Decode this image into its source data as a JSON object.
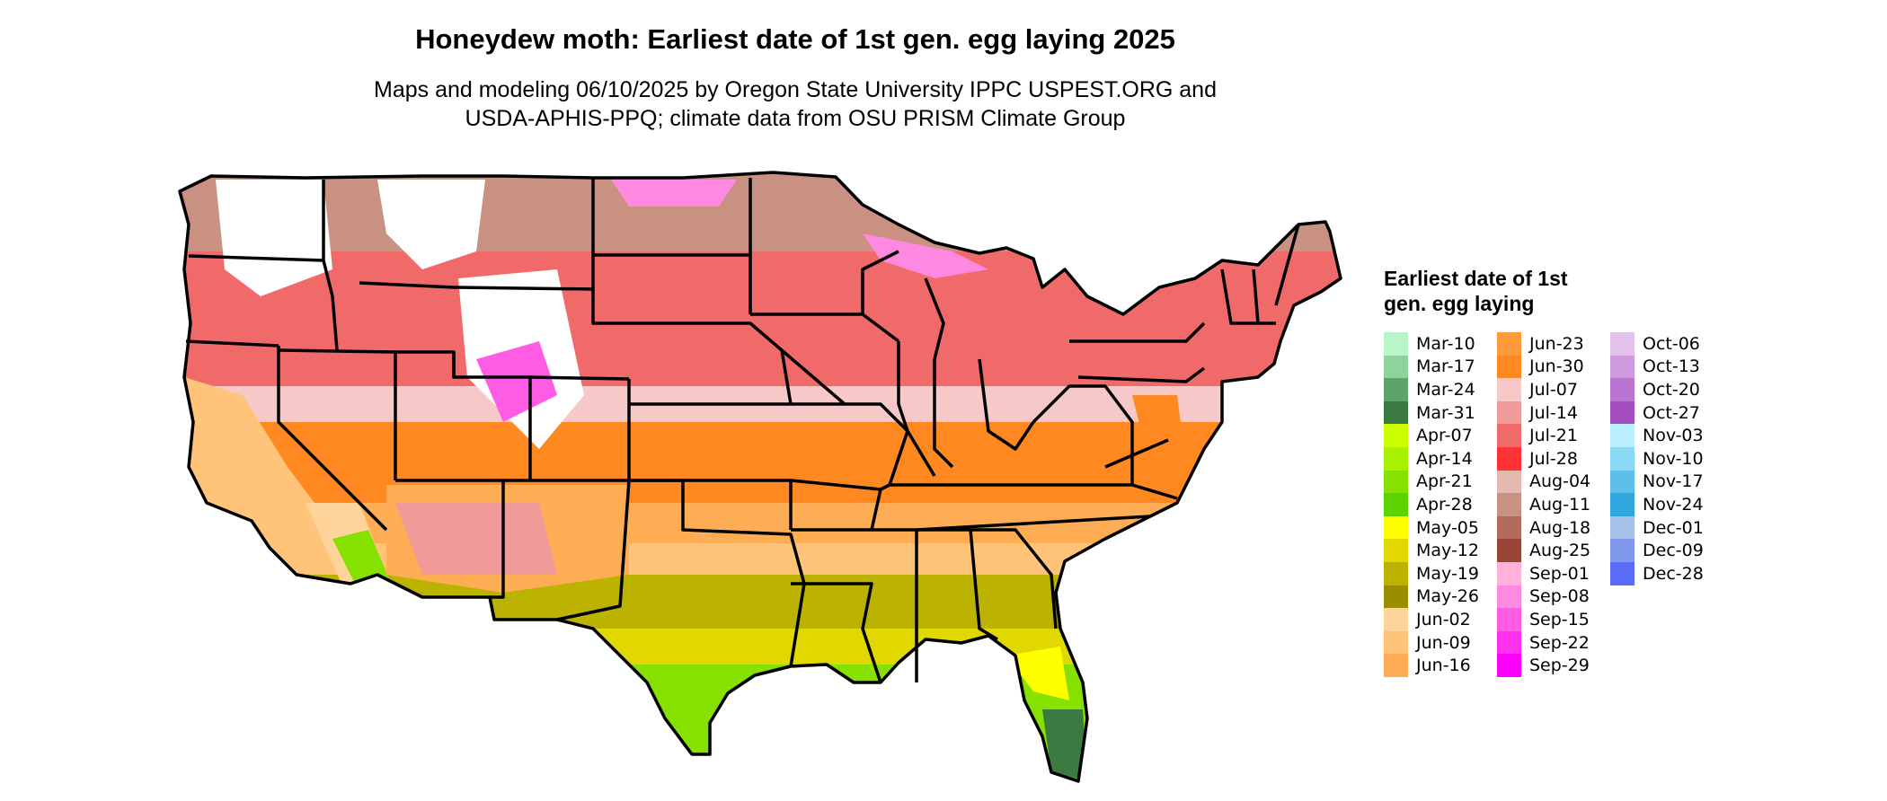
{
  "title": "Honeydew moth: Earliest date of 1st gen. egg laying 2025",
  "subtitle_lines": [
    "Maps and modeling 06/10/2025 by Oregon State University IPPC USPEST.ORG and",
    "USDA-APHIS-PPQ; climate data from OSU PRISM Climate Group"
  ],
  "legend": {
    "title": "Earliest date of 1st gen. egg laying",
    "columns": [
      [
        {
          "label": "Mar-10",
          "color": "#b8f5c8"
        },
        {
          "label": "Mar-17",
          "color": "#8fd29c"
        },
        {
          "label": "Mar-24",
          "color": "#5fa36a"
        },
        {
          "label": "Mar-31",
          "color": "#3b7a40"
        },
        {
          "label": "Apr-07",
          "color": "#ccff00"
        },
        {
          "label": "Apr-14",
          "color": "#a8f000"
        },
        {
          "label": "Apr-21",
          "color": "#86e000"
        },
        {
          "label": "Apr-28",
          "color": "#5cd200"
        },
        {
          "label": "May-05",
          "color": "#ffff00"
        },
        {
          "label": "May-12",
          "color": "#e0d800"
        },
        {
          "label": "May-19",
          "color": "#bcb300"
        },
        {
          "label": "May-26",
          "color": "#9a8d00"
        },
        {
          "label": "Jun-02",
          "color": "#ffd49a"
        },
        {
          "label": "Jun-09",
          "color": "#ffc37a"
        },
        {
          "label": "Jun-16",
          "color": "#ffad55"
        }
      ],
      [
        {
          "label": "Jun-23",
          "color": "#ff9a3a"
        },
        {
          "label": "Jun-30",
          "color": "#ff8820"
        },
        {
          "label": "Jul-07",
          "color": "#f6c8c8"
        },
        {
          "label": "Jul-14",
          "color": "#f09a9a"
        },
        {
          "label": "Jul-21",
          "color": "#f06a6a"
        },
        {
          "label": "Jul-28",
          "color": "#ff3333"
        },
        {
          "label": "Aug-04",
          "color": "#e4b9b0"
        },
        {
          "label": "Aug-11",
          "color": "#c99182"
        },
        {
          "label": "Aug-18",
          "color": "#b06b5c"
        },
        {
          "label": "Aug-25",
          "color": "#9a4636"
        },
        {
          "label": "Sep-01",
          "color": "#ffb3dd"
        },
        {
          "label": "Sep-08",
          "color": "#ff88e0"
        },
        {
          "label": "Sep-15",
          "color": "#ff5ce6"
        },
        {
          "label": "Sep-22",
          "color": "#ff30ee"
        },
        {
          "label": "Sep-29",
          "color": "#ff00ff"
        }
      ],
      [
        {
          "label": "Oct-06",
          "color": "#e2c2ea"
        },
        {
          "label": "Oct-13",
          "color": "#d09ade"
        },
        {
          "label": "Oct-20",
          "color": "#bb74d2"
        },
        {
          "label": "Oct-27",
          "color": "#a44ec2"
        },
        {
          "label": "Nov-03",
          "color": "#b8eeff"
        },
        {
          "label": "Nov-10",
          "color": "#8ad8f4"
        },
        {
          "label": "Nov-17",
          "color": "#5cc0ea"
        },
        {
          "label": "Nov-24",
          "color": "#30a6de"
        },
        {
          "label": "Dec-01",
          "color": "#a6c2e8"
        },
        {
          "label": "Dec-09",
          "color": "#8098ec"
        },
        {
          "label": "Dec-28",
          "color": "#5a6cf6"
        }
      ]
    ]
  }
}
